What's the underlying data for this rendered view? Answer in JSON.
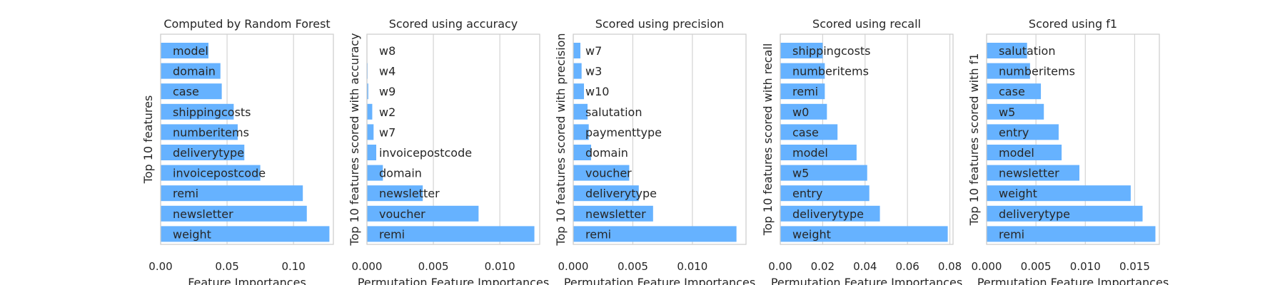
{
  "chart_data": [
    {
      "type": "bar",
      "orientation": "horizontal",
      "title": "Computed by Random Forest",
      "xlabel": "Feature Importances",
      "ylabel": "Top 10 features",
      "xlim": [
        0,
        0.13
      ],
      "xticks": [
        0.0,
        0.05,
        0.1
      ],
      "xtick_labels": [
        "0.00",
        "0.05",
        "0.10"
      ],
      "grid": "vertical",
      "categories": [
        "model",
        "domain",
        "case",
        "shippingcosts",
        "numberitems",
        "deliverytype",
        "invoicepostcode",
        "remi",
        "newsletter",
        "weight"
      ],
      "values": [
        0.036,
        0.045,
        0.046,
        0.055,
        0.058,
        0.063,
        0.075,
        0.107,
        0.11,
        0.127
      ]
    },
    {
      "type": "bar",
      "orientation": "horizontal",
      "title": "Scored using accuracy",
      "xlabel": "Permutation Feature Importances",
      "ylabel": "Top 10 features scored with accuracy",
      "xlim": [
        0,
        0.013
      ],
      "xticks": [
        0.0,
        0.005,
        0.01
      ],
      "xtick_labels": [
        "0.000",
        "0.005",
        "0.010"
      ],
      "grid": "vertical",
      "categories": [
        "w8",
        "w4",
        "w9",
        "w2",
        "w7",
        "invoicepostcode",
        "domain",
        "newsletter",
        "voucher",
        "remi"
      ],
      "values": [
        2e-05,
        5e-05,
        0.0001,
        0.0004,
        0.0005,
        0.0007,
        0.0012,
        0.0042,
        0.0084,
        0.0126
      ]
    },
    {
      "type": "bar",
      "orientation": "horizontal",
      "title": "Scored using precision",
      "xlabel": "Permutation Feature Importances",
      "ylabel": "Top 10 features scored with precision",
      "xlim": [
        0,
        0.0145
      ],
      "xticks": [
        0.0,
        0.005,
        0.01
      ],
      "xtick_labels": [
        "0.000",
        "0.005",
        "0.010"
      ],
      "grid": "vertical",
      "categories": [
        "w7",
        "w3",
        "w10",
        "salutation",
        "paymenttype",
        "domain",
        "voucher",
        "deliverytype",
        "newsletter",
        "remi"
      ],
      "values": [
        0.0006,
        0.0007,
        0.0009,
        0.0012,
        0.0013,
        0.0015,
        0.0047,
        0.0055,
        0.0067,
        0.0137
      ]
    },
    {
      "type": "bar",
      "orientation": "horizontal",
      "title": "Scored using recall",
      "xlabel": "Permutation Feature Importances",
      "ylabel": "Top 10 features scored with recall",
      "xlim": [
        0,
        0.0815
      ],
      "xticks": [
        0.0,
        0.02,
        0.04,
        0.06,
        0.08
      ],
      "xtick_labels": [
        "0.00",
        "0.02",
        "0.04",
        "0.06",
        "0.08"
      ],
      "grid": "vertical",
      "categories": [
        "shippingcosts",
        "numberitems",
        "remi",
        "w0",
        "case",
        "model",
        "w5",
        "entry",
        "deliverytype",
        "weight"
      ],
      "values": [
        0.02,
        0.021,
        0.021,
        0.022,
        0.027,
        0.036,
        0.041,
        0.042,
        0.047,
        0.079
      ]
    },
    {
      "type": "bar",
      "orientation": "horizontal",
      "title": "Scored using f1",
      "xlabel": "Permutation Feature Importances",
      "ylabel": "Top 10 features scored with f1",
      "xlim": [
        0,
        0.0175
      ],
      "xticks": [
        0.0,
        0.005,
        0.01,
        0.015
      ],
      "xtick_labels": [
        "0.000",
        "0.005",
        "0.010",
        "0.015"
      ],
      "grid": "vertical",
      "categories": [
        "salutation",
        "numberitems",
        "case",
        "w5",
        "entry",
        "model",
        "newsletter",
        "weight",
        "deliverytype",
        "remi"
      ],
      "values": [
        0.0041,
        0.0044,
        0.0055,
        0.0058,
        0.0073,
        0.0076,
        0.0094,
        0.0146,
        0.0158,
        0.0171
      ]
    }
  ],
  "colors": {
    "bar": "#66b2ff",
    "grid": "#d4d4d4",
    "frame": "#cccccc",
    "text": "#262626"
  }
}
